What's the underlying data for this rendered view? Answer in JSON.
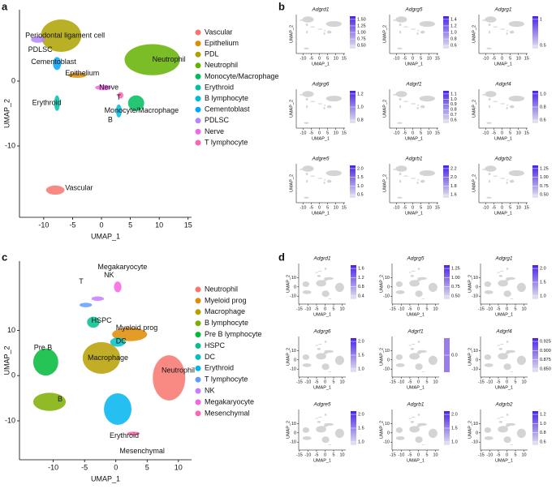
{
  "panel_labels": [
    "a",
    "b",
    "c",
    "d"
  ],
  "chart_data": [
    {
      "type": "scatter",
      "xlabel": "UMAP_1",
      "ylabel": "UMAP_2",
      "xlim": [
        -14.2,
        15.6
      ],
      "ylim": [
        -21,
        11
      ],
      "xticks": [
        -10,
        -5,
        0,
        5,
        10,
        15
      ],
      "yticks": [
        -10,
        0
      ],
      "clusters": [
        {
          "name": "Vascular",
          "color": "#F8766D",
          "x": -8,
          "y": -16.8
        },
        {
          "name": "Epithelium",
          "color": "#DB8E00",
          "x": -4.2,
          "y": 0.9
        },
        {
          "name": "PDL",
          "color": "#AEA200",
          "x": -7,
          "y": 7
        },
        {
          "name": "Neutrophil",
          "color": "#64B200",
          "x": 8.8,
          "y": 3.3
        },
        {
          "name": "Monocyte/Macrophage",
          "color": "#00BD5C",
          "x": 6,
          "y": -3.4
        },
        {
          "name": "Erythroid",
          "color": "#00C1A7",
          "x": -7.7,
          "y": -3.4
        },
        {
          "name": "B lymphocyte",
          "color": "#00BADE",
          "x": 3,
          "y": -4.6
        },
        {
          "name": "Cementoblast",
          "color": "#00A6FF",
          "x": -7.7,
          "y": 2.7
        },
        {
          "name": "PDLSC",
          "color": "#B385FF",
          "x": -11,
          "y": 6.4
        },
        {
          "name": "Nerve",
          "color": "#EF67EB",
          "x": 0.3,
          "y": -1
        },
        {
          "name": "T lymphocyte",
          "color": "#FF63B6",
          "x": 3.3,
          "y": -2.2
        }
      ],
      "annotations": [
        {
          "text": "Periodontal ligament cell",
          "x": -13.2,
          "y": 7
        },
        {
          "text": "PDLSC",
          "x": -12.7,
          "y": 4.8
        },
        {
          "text": "Cementoblast",
          "x": -12.2,
          "y": 2.9
        },
        {
          "text": "Epithelium",
          "x": -6.3,
          "y": 1.2
        },
        {
          "text": "Nerve",
          "x": -0.4,
          "y": -1
        },
        {
          "text": "Neutrophil",
          "x": 8.8,
          "y": 3.3
        },
        {
          "text": "Erythroid",
          "x": -12,
          "y": -3.4
        },
        {
          "text": "T",
          "x": 2.6,
          "y": -2.6
        },
        {
          "text": "Monocyte/Macrophage",
          "x": 0.5,
          "y": -4.6
        },
        {
          "text": "B",
          "x": 1.1,
          "y": -6
        },
        {
          "text": "Vascular",
          "x": -6.3,
          "y": -16.5
        }
      ]
    },
    {
      "type": "feature_grid",
      "xlabel": "UMAP_1",
      "ylabel": "UMAP_2",
      "xticks": [
        -10,
        -5,
        0,
        5,
        10,
        15
      ],
      "yticks": [],
      "plots": [
        {
          "gene": "Adgrd1",
          "colorbar_ticks": [
            {
              "value": 0.5,
              "label": "0.50"
            },
            0.75,
            {
              "value": 1,
              "label": "1.00"
            },
            1.25,
            {
              "value": 1.5,
              "label": "1.50"
            }
          ]
        },
        {
          "gene": "Adgrg5",
          "colorbar_ticks": [
            0.6,
            0.8,
            {
              "value": 1,
              "label": "1.0"
            },
            1.2,
            1.4
          ]
        },
        {
          "gene": "Adgrg1",
          "colorbar_ticks": [
            0.5,
            1
          ]
        },
        {
          "gene": "Adgrg6",
          "colorbar_ticks": [
            0.8,
            {
              "value": 1,
              "label": "1.0"
            },
            1.2
          ]
        },
        {
          "gene": "Adgrf1",
          "colorbar_ticks": [
            0.6,
            0.7,
            0.8,
            0.9,
            {
              "value": 1,
              "label": "1.0"
            },
            1.1
          ]
        },
        {
          "gene": "Adgrf4",
          "colorbar_ticks": [
            0.6,
            0.8,
            {
              "value": 1,
              "label": "1.0"
            }
          ]
        },
        {
          "gene": "Adgre5",
          "colorbar_ticks": [
            0.5,
            {
              "value": 1,
              "label": "1.0"
            },
            1.5,
            {
              "value": 2,
              "label": "2.0"
            }
          ]
        },
        {
          "gene": "Adgrb1",
          "colorbar_ticks": [
            1.6,
            1.8,
            {
              "value": 2,
              "label": "2.0"
            },
            2.2
          ]
        },
        {
          "gene": "Adgrb2",
          "colorbar_ticks": [
            {
              "value": 0.5,
              "label": "0.50"
            },
            0.75,
            {
              "value": 1,
              "label": "1.00"
            },
            1.25
          ]
        }
      ]
    },
    {
      "type": "scatter",
      "xlabel": "UMAP_1",
      "ylabel": "UMAP_2",
      "xlim": [
        -15.4,
        12.1
      ],
      "ylim": [
        -18.6,
        25.3
      ],
      "xticks": [
        -10,
        -5,
        0,
        5,
        10
      ],
      "yticks": [
        -10,
        0,
        10
      ],
      "clusters": [
        {
          "name": "Neutrophil",
          "color": "#F8766D",
          "x": 8.5,
          "y": -0.5
        },
        {
          "name": "Myeloid prog",
          "color": "#DE8C00",
          "x": 2.2,
          "y": 9.1
        },
        {
          "name": "Macrophage",
          "color": "#B79F00",
          "x": -2.3,
          "y": 3.9
        },
        {
          "name": "B lymphocyte",
          "color": "#7CAE00",
          "x": -10.6,
          "y": -5.8
        },
        {
          "name": "Pre B lymphocyte",
          "color": "#00BA38",
          "x": -11.2,
          "y": 3
        },
        {
          "name": "HSPC",
          "color": "#00C08B",
          "x": -3.6,
          "y": 11.8
        },
        {
          "name": "DC",
          "color": "#00BFC4",
          "x": 0.3,
          "y": 7.4
        },
        {
          "name": "Erythroid",
          "color": "#00B4F0",
          "x": 0.3,
          "y": -7.4
        },
        {
          "name": "T lymphocyte",
          "color": "#619CFF",
          "x": -4.8,
          "y": 15.6
        },
        {
          "name": "NK",
          "color": "#C77CFF",
          "x": -2.9,
          "y": 17
        },
        {
          "name": "Megakaryocyte",
          "color": "#F564E3",
          "x": 0.3,
          "y": 19.6
        },
        {
          "name": "Mesenchymal",
          "color": "#FF64B0",
          "x": 2.8,
          "y": -12.8
        }
      ],
      "annotations": [
        {
          "text": "Megakaryocyte",
          "x": -2.9,
          "y": 23.9
        },
        {
          "text": "NK",
          "x": -1.9,
          "y": 22.1
        },
        {
          "text": "T",
          "x": -5.9,
          "y": 20.7
        },
        {
          "text": "HSPC",
          "x": -3.9,
          "y": 12.1
        },
        {
          "text": "Myeloid prog",
          "x": 0,
          "y": 10.5
        },
        {
          "text": "DC",
          "x": 0,
          "y": 7.5
        },
        {
          "text": "Pre B",
          "x": -13.1,
          "y": 6.1
        },
        {
          "text": "Macrophage",
          "x": -4.5,
          "y": 3.9
        },
        {
          "text": "Neutrophil",
          "x": 7.3,
          "y": 1.1
        },
        {
          "text": "B",
          "x": -9.3,
          "y": -5.3
        },
        {
          "text": "Erythroid",
          "x": -1,
          "y": -13.3
        },
        {
          "text": "Mesenchymal",
          "x": 0.6,
          "y": -16.7
        }
      ]
    },
    {
      "type": "feature_grid",
      "xlabel": "UMAP_1",
      "ylabel": "UMAP_2",
      "xticks": [
        -15,
        -10,
        -5,
        0,
        5,
        10
      ],
      "yticks": [
        -10,
        0,
        10
      ],
      "plots": [
        {
          "gene": "Adgrd1",
          "colorbar_ticks": [
            0.4,
            0.8,
            1.2,
            1.6
          ]
        },
        {
          "gene": "Adgrg5",
          "colorbar_ticks": [
            {
              "value": 0.5,
              "label": "0.50"
            },
            0.75,
            {
              "value": 1,
              "label": "1.00"
            },
            1.25
          ]
        },
        {
          "gene": "Adgrg1",
          "colorbar_ticks": [
            {
              "value": 1,
              "label": "1.0"
            },
            1.5,
            {
              "value": 2,
              "label": "2.0"
            }
          ]
        },
        {
          "gene": "Adgrg6",
          "colorbar_ticks": [
            {
              "value": 1,
              "label": "1.0"
            },
            1.5,
            {
              "value": 2,
              "label": "2.0"
            }
          ]
        },
        {
          "gene": "Adgrf1",
          "colorbar_ticks": [
            {
              "value": 0,
              "label": "0.0"
            }
          ]
        },
        {
          "gene": "Adgrf4",
          "colorbar_ticks": [
            {
              "value": 0.85,
              "label": "0.850"
            },
            0.875,
            {
              "value": 0.9,
              "label": "0.900"
            },
            0.925
          ]
        },
        {
          "gene": "Adgre5",
          "colorbar_ticks": [
            {
              "value": 1,
              "label": "1.0"
            },
            1.5,
            {
              "value": 2,
              "label": "2.0"
            }
          ]
        },
        {
          "gene": "Adgrb1",
          "colorbar_ticks": [
            {
              "value": 1,
              "label": "1.0"
            },
            1.5,
            {
              "value": 2,
              "label": "2.0"
            }
          ]
        },
        {
          "gene": "Adgrb2",
          "colorbar_ticks": [
            0.6,
            0.8,
            {
              "value": 1,
              "label": "1.0"
            },
            1.2
          ]
        }
      ]
    }
  ]
}
